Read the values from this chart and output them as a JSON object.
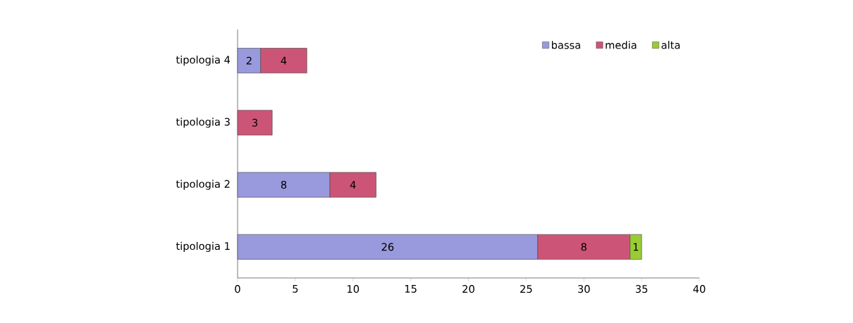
{
  "chart_data": {
    "type": "bar",
    "orientation": "horizontal",
    "stacked": true,
    "data_labels": true,
    "legend": "top right",
    "categories": [
      "tipologia 4",
      "tipologia 3",
      "tipologia 2",
      "tipologia 1"
    ],
    "series": [
      {
        "name": "bassa",
        "color": "#9999dd",
        "values": [
          2,
          null,
          8,
          26
        ]
      },
      {
        "name": "media",
        "color": "#cc5577",
        "values": [
          4,
          3,
          4,
          8
        ]
      },
      {
        "name": "alta",
        "color": "#99cc33",
        "values": [
          null,
          null,
          null,
          1
        ]
      }
    ],
    "xlim": [
      0,
      40
    ],
    "xticks": [
      0,
      5,
      10,
      15,
      20,
      25,
      30,
      35,
      40
    ]
  }
}
